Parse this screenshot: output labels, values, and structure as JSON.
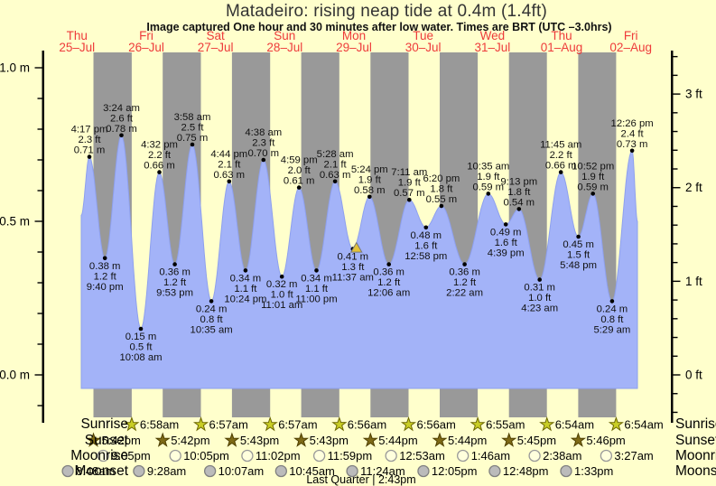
{
  "title": "Matadeiro: rising  neap tide at 0.4m (1.4ft)",
  "subtitle": "Image captured One hour and 30 minutes after low water. Times are BRT (UTC –3.0hrs)",
  "colors": {
    "background": "#ffffcc",
    "night_band": "#999999",
    "tide_fill": "#a3b3f8",
    "tide_edge": "#8ea0ee",
    "day_label": "#ee3b3b",
    "marker_fill": "#e3c239",
    "marker_stroke": "#777777",
    "sunrise_star_fill": "#c9ce25",
    "sunrise_star_stroke": "#6b6600",
    "sunset_star_fill": "#7e6a16",
    "sunset_star_stroke": "#4e3f00",
    "moonrise_fill": "#ffffdd",
    "moonrise_stroke": "#999999",
    "moonset_fill": "#bbbbbb",
    "moonset_stroke": "#808080"
  },
  "chart_data": {
    "type": "area",
    "title": "Matadeiro: rising  neap tide at 0.4m (1.4ft)",
    "ylim_m": [
      -0.15,
      1.05
    ],
    "grid": false,
    "days": [
      {
        "weekday": "Thu",
        "date": "25–Jul"
      },
      {
        "weekday": "Fri",
        "date": "26–Jul"
      },
      {
        "weekday": "Sat",
        "date": "27–Jul"
      },
      {
        "weekday": "Sun",
        "date": "28–Jul"
      },
      {
        "weekday": "Mon",
        "date": "29–Jul"
      },
      {
        "weekday": "Tue",
        "date": "30–Jul"
      },
      {
        "weekday": "Wed",
        "date": "31–Jul"
      },
      {
        "weekday": "Thu",
        "date": "01–Aug"
      },
      {
        "weekday": "Fri",
        "date": "02–Aug"
      }
    ],
    "y_ticks_left": [
      {
        "label": "1.0 m",
        "m": 1.0
      },
      {
        "label": "0.5 m",
        "m": 0.5
      },
      {
        "label": "0.0 m",
        "m": 0.0
      }
    ],
    "y_ticks_right": [
      {
        "label": "3 ft",
        "ft": 3
      },
      {
        "label": "2 ft",
        "ft": 2
      },
      {
        "label": "1 ft",
        "ft": 1
      },
      {
        "label": "0 ft",
        "ft": 0
      }
    ],
    "events": [
      {
        "type": "high",
        "day": 0,
        "time": "4:17 pm",
        "ft": "2.3 ft",
        "m": "0.71 m",
        "value_m": 0.71
      },
      {
        "type": "low",
        "day": 0,
        "time": "9:40 pm",
        "ft": "1.2 ft",
        "m": "0.38 m",
        "value_m": 0.38
      },
      {
        "type": "high",
        "day": 1,
        "time": "3:24 am",
        "ft": "2.6 ft",
        "m": "0.78 m",
        "value_m": 0.78
      },
      {
        "type": "low",
        "day": 1,
        "time": "10:08 am",
        "ft": "0.5 ft",
        "m": "0.15 m",
        "value_m": 0.15
      },
      {
        "type": "high",
        "day": 1,
        "time": "4:32 pm",
        "ft": "2.2 ft",
        "m": "0.66 m",
        "value_m": 0.66
      },
      {
        "type": "low",
        "day": 1,
        "time": "9:53 pm",
        "ft": "1.2 ft",
        "m": "0.36 m",
        "value_m": 0.36
      },
      {
        "type": "high",
        "day": 2,
        "time": "3:58 am",
        "ft": "2.5 ft",
        "m": "0.75 m",
        "value_m": 0.75
      },
      {
        "type": "low",
        "day": 2,
        "time": "10:35 am",
        "ft": "0.8 ft",
        "m": "0.24 m",
        "value_m": 0.24
      },
      {
        "type": "high",
        "day": 2,
        "time": "4:44 pm",
        "ft": "2.1 ft",
        "m": "0.63 m",
        "value_m": 0.63
      },
      {
        "type": "low",
        "day": 2,
        "time": "10:24 pm",
        "ft": "1.1 ft",
        "m": "0.34 m",
        "value_m": 0.34
      },
      {
        "type": "high",
        "day": 3,
        "time": "4:38 am",
        "ft": "2.3 ft",
        "m": "0.70 m",
        "value_m": 0.7
      },
      {
        "type": "low",
        "day": 3,
        "time": "11:01 am",
        "ft": "1.0 ft",
        "m": "0.32 m",
        "value_m": 0.32
      },
      {
        "type": "high",
        "day": 3,
        "time": "4:59 pm",
        "ft": "2.0 ft",
        "m": "0.61 m",
        "value_m": 0.61
      },
      {
        "type": "low",
        "day": 3,
        "time": "11:00 pm",
        "ft": "1.1 ft",
        "m": "0.34 m",
        "value_m": 0.34
      },
      {
        "type": "high",
        "day": 4,
        "time": "5:28 am",
        "ft": "2.1 ft",
        "m": "0.63 m",
        "value_m": 0.63
      },
      {
        "type": "low",
        "day": 4,
        "time": "11:37 am",
        "ft": "1.3 ft",
        "m": "0.41 m",
        "value_m": 0.41,
        "marker": true
      },
      {
        "type": "high",
        "day": 4,
        "time": "5:24 pm",
        "ft": "1.9 ft",
        "m": "0.58 m",
        "value_m": 0.58
      },
      {
        "type": "low",
        "day": 5,
        "time": "12:06 am",
        "ft": "1.2 ft",
        "m": "0.36 m",
        "value_m": 0.36
      },
      {
        "type": "high",
        "day": 5,
        "time": "7:11 am",
        "ft": "1.9 ft",
        "m": "0.57 m",
        "value_m": 0.57
      },
      {
        "type": "low",
        "day": 5,
        "time": "12:58 pm",
        "ft": "1.6 ft",
        "m": "0.48 m",
        "value_m": 0.48
      },
      {
        "type": "high",
        "day": 5,
        "time": "6:20 pm",
        "ft": "1.8 ft",
        "m": "0.55 m",
        "value_m": 0.55
      },
      {
        "type": "low",
        "day": 6,
        "time": "2:22 am",
        "ft": "1.2 ft",
        "m": "0.36 m",
        "value_m": 0.36
      },
      {
        "type": "high",
        "day": 6,
        "time": "10:35 am",
        "ft": "1.9 ft",
        "m": "0.59 m",
        "value_m": 0.59
      },
      {
        "type": "low",
        "day": 6,
        "time": "4:39 pm",
        "ft": "1.6 ft",
        "m": "0.49 m",
        "value_m": 0.49
      },
      {
        "type": "high",
        "day": 6,
        "time": "9:13 pm",
        "ft": "1.8 ft",
        "m": "0.54 m",
        "value_m": 0.54
      },
      {
        "type": "low",
        "day": 7,
        "time": "4:23 am",
        "ft": "1.0 ft",
        "m": "0.31 m",
        "value_m": 0.31
      },
      {
        "type": "high",
        "day": 7,
        "time": "11:45 am",
        "ft": "2.2 ft",
        "m": "0.66 m",
        "value_m": 0.66
      },
      {
        "type": "low",
        "day": 7,
        "time": "5:48 pm",
        "ft": "1.5 ft",
        "m": "0.45 m",
        "value_m": 0.45
      },
      {
        "type": "high",
        "day": 7,
        "time": "10:52 pm",
        "ft": "1.9 ft",
        "m": "0.59 m",
        "value_m": 0.59
      },
      {
        "type": "low",
        "day": 8,
        "time": "5:29 am",
        "ft": "0.8 ft",
        "m": "0.24 m",
        "value_m": 0.24
      },
      {
        "type": "high",
        "day": 8,
        "time": "12:26 pm",
        "ft": "2.4 ft",
        "m": "0.73 m",
        "value_m": 0.73
      }
    ]
  },
  "astro": {
    "row_labels": [
      "Sunrise",
      "Sunset",
      "Moonrise",
      "Moonset"
    ],
    "sunrise": [
      {
        "day": 1,
        "time": "6:58am"
      },
      {
        "day": 2,
        "time": "6:57am"
      },
      {
        "day": 3,
        "time": "6:57am"
      },
      {
        "day": 4,
        "time": "6:56am"
      },
      {
        "day": 5,
        "time": "6:56am"
      },
      {
        "day": 6,
        "time": "6:55am"
      },
      {
        "day": 7,
        "time": "6:54am"
      },
      {
        "day": 8,
        "time": "6:54am"
      }
    ],
    "sunset": [
      {
        "day": 0,
        "time": "5:42pm"
      },
      {
        "day": 1,
        "time": "5:42pm"
      },
      {
        "day": 2,
        "time": "5:43pm"
      },
      {
        "day": 3,
        "time": "5:43pm"
      },
      {
        "day": 4,
        "time": "5:44pm"
      },
      {
        "day": 5,
        "time": "5:44pm"
      },
      {
        "day": 6,
        "time": "5:45pm"
      },
      {
        "day": 7,
        "time": "5:46pm"
      }
    ],
    "moonrise": [
      {
        "day": 0,
        "time": "9:05pm"
      },
      {
        "day": 1,
        "time": "10:05pm"
      },
      {
        "day": 2,
        "time": "11:02pm"
      },
      {
        "day": 3,
        "time": "11:59pm"
      },
      {
        "day": 5,
        "time": "12:53am"
      },
      {
        "day": 6,
        "time": "1:46am"
      },
      {
        "day": 7,
        "time": "2:38am"
      },
      {
        "day": 8,
        "time": "3:27am"
      }
    ],
    "moonset": [
      {
        "day": 0,
        "time": "8:48am"
      },
      {
        "day": 1,
        "time": "9:28am"
      },
      {
        "day": 2,
        "time": "10:07am"
      },
      {
        "day": 3,
        "time": "10:45am"
      },
      {
        "day": 4,
        "time": "11:24am"
      },
      {
        "day": 5,
        "time": "12:05pm"
      },
      {
        "day": 6,
        "time": "12:48pm"
      },
      {
        "day": 7,
        "time": "1:33pm"
      }
    ],
    "moon_phase": "Last Quarter | 2:43pm"
  }
}
